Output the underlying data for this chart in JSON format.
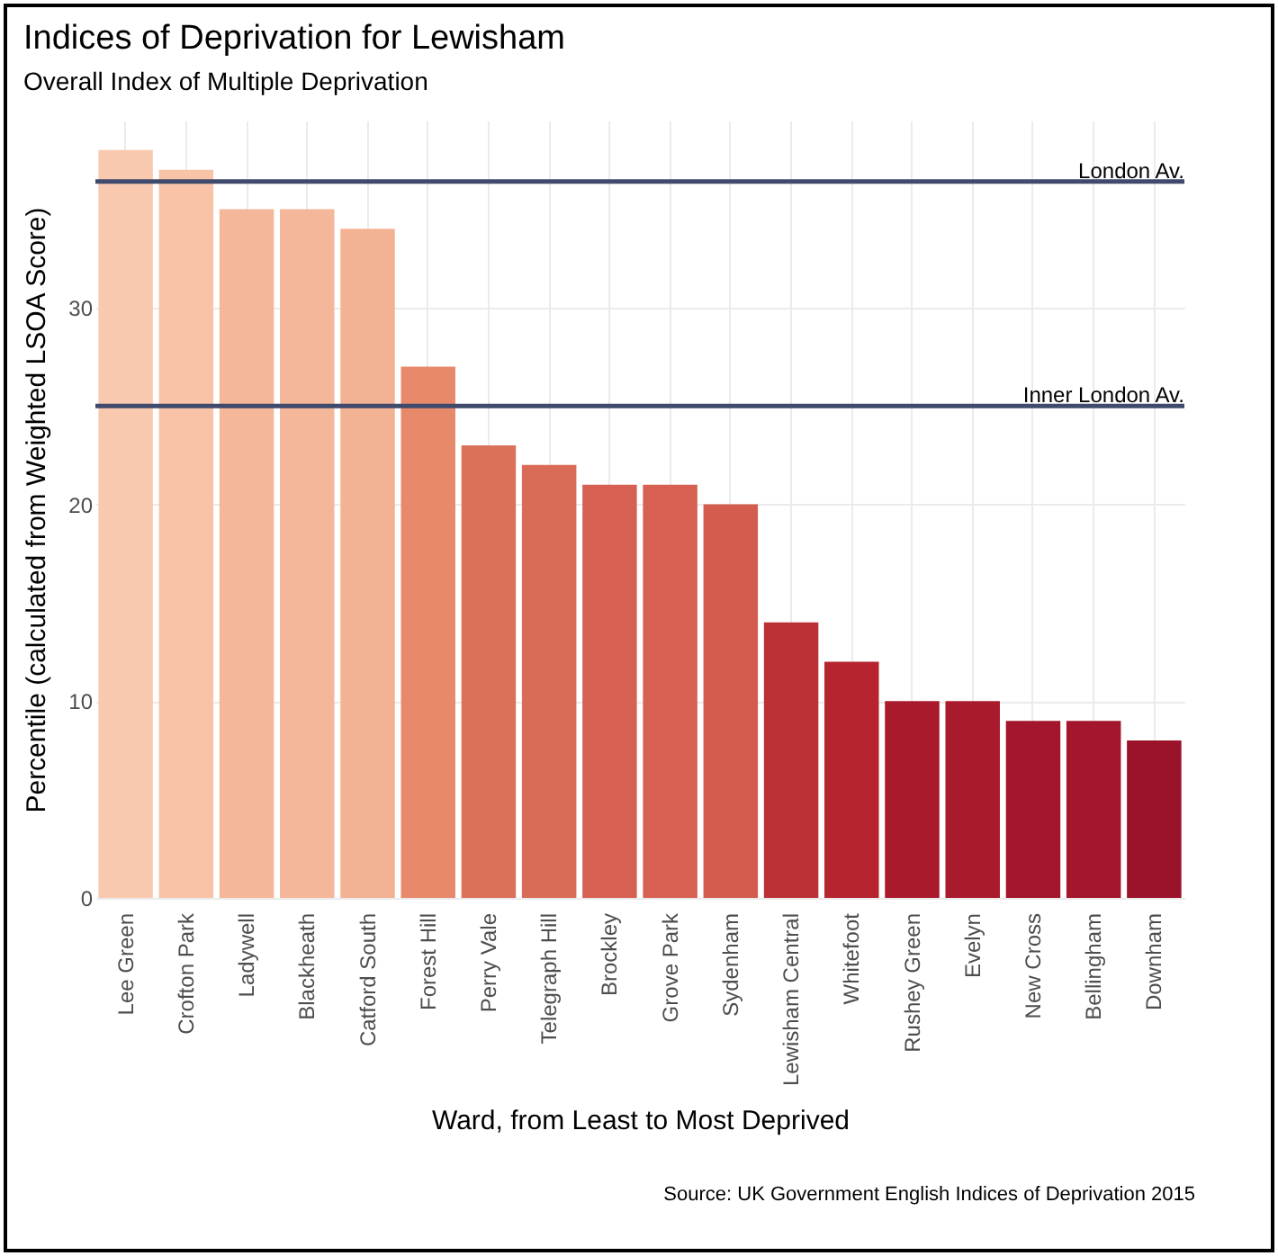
{
  "chart_data": {
    "type": "bar",
    "title": "Indices of Deprivation for Lewisham",
    "subtitle": "Overall Index of Multiple Deprivation",
    "xlabel": "Ward, from Least to Most Deprived",
    "ylabel": "Percentile (calculated from Weighted LSOA Score)",
    "categories": [
      "Lee Green",
      "Crofton Park",
      "Ladywell",
      "Blackheath",
      "Catford South",
      "Forest Hill",
      "Perry Vale",
      "Telegraph Hill",
      "Brockley",
      "Grove Park",
      "Sydenham",
      "Lewisham Central",
      "Whitefoot",
      "Rushey Green",
      "Evelyn",
      "New Cross",
      "Bellingham",
      "Downham"
    ],
    "values": [
      38,
      37,
      35,
      35,
      34,
      27,
      23,
      22,
      21,
      21,
      20,
      14,
      12,
      10,
      10,
      9,
      9,
      8
    ],
    "colors": [
      "#f9c9af",
      "#f8c3a7",
      "#f5b799",
      "#f5b799",
      "#f4b294",
      "#e78a6c",
      "#dc715a",
      "#da6b56",
      "#d66152",
      "#d66152",
      "#d35c4e",
      "#bc3138",
      "#b5242f",
      "#a81a2c",
      "#a81a2c",
      "#a3162b",
      "#a3162b",
      "#9a132b"
    ],
    "ylim": [
      0,
      39.5
    ],
    "yticks": [
      0,
      10,
      20,
      30
    ],
    "grid": true,
    "ref_lines": [
      {
        "axis": "y",
        "value": 36.4,
        "label": "London Av.",
        "color": "#3f4a6d"
      },
      {
        "axis": "y",
        "value": 25,
        "label": "Inner London Av.",
        "color": "#3f4a6d"
      }
    ],
    "annotations": [
      "Source: UK Government English Indices of Deprivation 2015"
    ]
  }
}
